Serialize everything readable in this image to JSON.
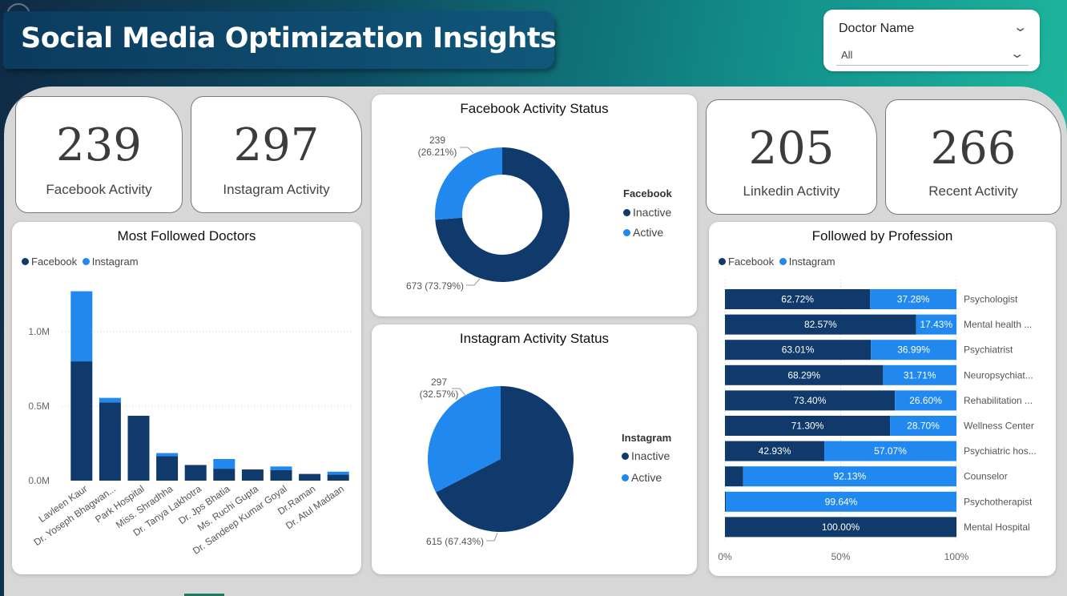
{
  "header": {
    "title": "Social Media Optimization Insights",
    "back_icon": "arrow-left-circle-icon"
  },
  "slicer": {
    "label": "Doctor Name",
    "value": "All",
    "icon": "chevron-down-icon"
  },
  "kpis": {
    "facebook": {
      "value": "239",
      "label": "Facebook Activity"
    },
    "instagram": {
      "value": "297",
      "label": "Instagram Activity"
    },
    "linkedin": {
      "value": "205",
      "label": "Linkedin Activity"
    },
    "recent": {
      "value": "266",
      "label": "Recent Activity"
    }
  },
  "colors": {
    "facebook": "#0f3a6b",
    "instagram": "#2188f0",
    "inactive": "#0f3a6b",
    "active": "#2188f0"
  },
  "chart_data": [
    {
      "id": "most_followed",
      "type": "bar",
      "stacked": true,
      "title": "Most Followed Doctors",
      "legend": [
        "Facebook",
        "Instagram"
      ],
      "categories": [
        "Lavleen Kaur",
        "Dr. Yoseph Bhagwan...",
        "Park Hospital",
        "Miss. Shradhha",
        "Dr. Tanya Lakhotra",
        "Dr. Jps Bhatia",
        "Ms. Ruchi Gupta",
        "Dr. Sandeep Kumar Goyal",
        "Dr.Raman",
        "Dr. Atul Madaan"
      ],
      "series": [
        {
          "name": "Facebook",
          "values": [
            800000,
            525000,
            435000,
            165000,
            105000,
            80000,
            75000,
            70000,
            45000,
            40000
          ]
        },
        {
          "name": "Instagram",
          "values": [
            470000,
            30000,
            0,
            20000,
            0,
            65000,
            0,
            25000,
            0,
            20000
          ]
        }
      ],
      "yticks": [
        "0.0M",
        "0.5M",
        "1.0M"
      ],
      "ylim": [
        0,
        1300000
      ]
    },
    {
      "id": "facebook_status",
      "type": "pie",
      "donut": true,
      "title": "Facebook Activity Status",
      "legend_title": "Facebook",
      "labels": [
        "Inactive",
        "Active"
      ],
      "values": [
        673,
        239
      ],
      "data_labels": [
        "673 (73.79%)",
        "239\n(26.21%)"
      ]
    },
    {
      "id": "instagram_status",
      "type": "pie",
      "donut": false,
      "title": "Instagram Activity Status",
      "legend_title": "Instagram",
      "labels": [
        "Inactive",
        "Active"
      ],
      "values": [
        615,
        297
      ],
      "data_labels": [
        "615 (67.43%)",
        "297\n(32.57%)"
      ]
    },
    {
      "id": "by_profession",
      "type": "bar",
      "orientation": "horizontal",
      "stacked_percent": true,
      "title": "Followed by Profession",
      "legend": [
        "Facebook",
        "Instagram"
      ],
      "categories": [
        "Psychologist",
        "Mental health ...",
        "Psychiatrist",
        "Neuropsychiat...",
        "Rehabilitation ...",
        "Wellness Center",
        "Psychiatric hos...",
        "Counselor",
        "Psychotherapist",
        "Mental Hospital"
      ],
      "series": [
        {
          "name": "Facebook",
          "values": [
            62.72,
            82.57,
            63.01,
            68.29,
            73.4,
            71.3,
            42.93,
            7.87,
            0.36,
            100.0
          ],
          "labels": [
            "62.72%",
            "82.57%",
            "63.01%",
            "68.29%",
            "73.40%",
            "71.30%",
            "42.93%",
            "",
            "",
            "100.00%"
          ]
        },
        {
          "name": "Instagram",
          "values": [
            37.28,
            17.43,
            36.99,
            31.71,
            26.6,
            28.7,
            57.07,
            92.13,
            99.64,
            0
          ],
          "labels": [
            "37.28%",
            "17.43%",
            "36.99%",
            "31.71%",
            "26.60%",
            "28.70%",
            "57.07%",
            "92.13%",
            "99.64%",
            ""
          ]
        }
      ],
      "xticks": [
        "0%",
        "50%",
        "100%"
      ],
      "xlim": [
        0,
        100
      ]
    }
  ]
}
